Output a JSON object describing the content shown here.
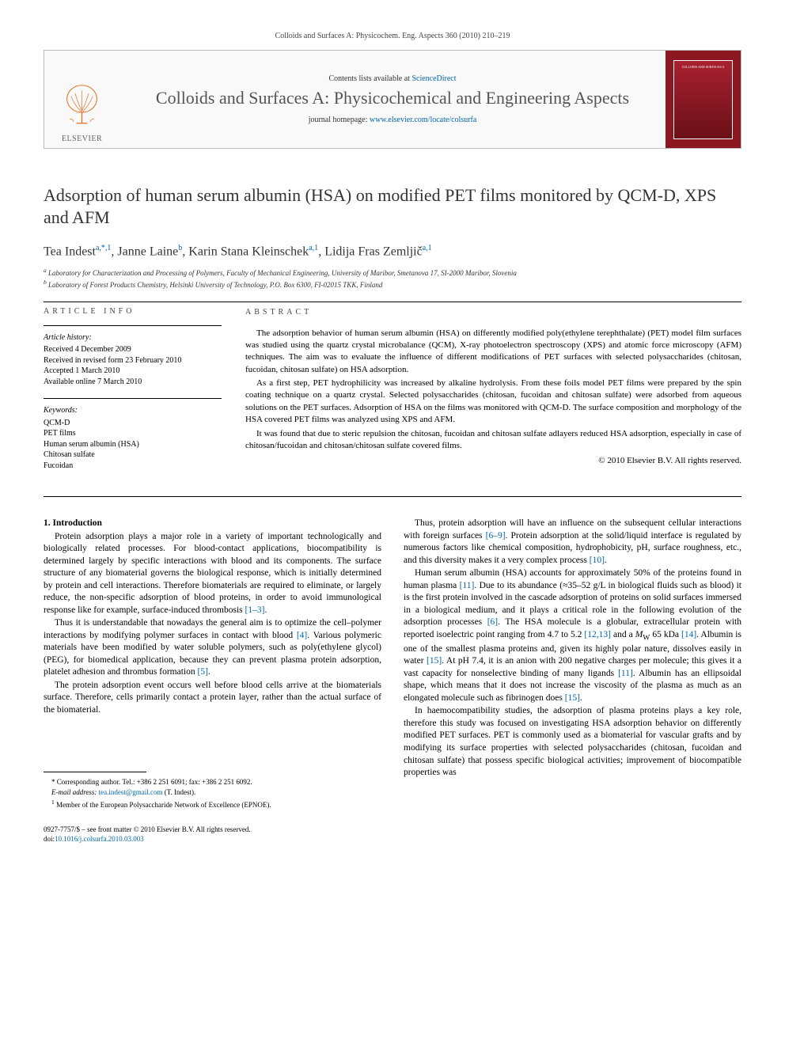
{
  "header": {
    "citation": "Colloids and Surfaces A: Physicochem. Eng. Aspects 360 (2010) 210–219"
  },
  "banner": {
    "contents_prefix": "Contents lists available at ",
    "contents_link": "ScienceDirect",
    "journal_name": "Colloids and Surfaces A: Physicochemical and Engineering Aspects",
    "homepage_prefix": "journal homepage: ",
    "homepage_url": "www.elsevier.com/locate/colsurfa",
    "publisher_label": "ELSEVIER",
    "cover_thumb_text": "COLLOIDS AND SURFACES A"
  },
  "article": {
    "title": "Adsorption of human serum albumin (HSA) on modified PET films monitored by QCM-D, XPS and AFM",
    "authors_html": "Tea Indest<sup>a,*,1</sup>, Janne Laine<sup>b</sup>, Karin Stana Kleinschek<sup>a,1</sup>, Lidija Fras Zemljič<sup>a,1</sup>",
    "affiliations": [
      "a Laboratory for Characterization and Processing of Polymers, Faculty of Mechanical Engineering, University of Maribor, Smetanova 17, SI-2000 Maribor, Slovenia",
      "b Laboratory of Forest Products Chemistry, Helsinki University of Technology, P.O. Box 6300, FI-02015 TKK, Finland"
    ]
  },
  "article_info": {
    "heading": "ARTICLE INFO",
    "history_title": "Article history:",
    "history": [
      "Received 4 December 2009",
      "Received in revised form 23 February 2010",
      "Accepted 1 March 2010",
      "Available online 7 March 2010"
    ],
    "keywords_title": "Keywords:",
    "keywords": [
      "QCM-D",
      "PET films",
      "Human serum albumin (HSA)",
      "Chitosan sulfate",
      "Fucoidan"
    ]
  },
  "abstract": {
    "heading": "ABSTRACT",
    "paragraphs": [
      "The adsorption behavior of human serum albumin (HSA) on differently modified poly(ethylene terephthalate) (PET) model film surfaces was studied using the quartz crystal microbalance (QCM), X-ray photoelectron spectroscopy (XPS) and atomic force microscopy (AFM) techniques. The aim was to evaluate the influence of different modifications of PET surfaces with selected polysaccharides (chitosan, fucoidan, chitosan sulfate) on HSA adsorption.",
      "As a first step, PET hydrophilicity was increased by alkaline hydrolysis. From these foils model PET films were prepared by the spin coating technique on a quartz crystal. Selected polysaccharides (chitosan, fucoidan and chitosan sulfate) were adsorbed from aqueous solutions on the PET surfaces. Adsorption of HSA on the films was monitored with QCM-D. The surface composition and morphology of the HSA covered PET films was analyzed using XPS and AFM.",
      "It was found that due to steric repulsion the chitosan, fucoidan and chitosan sulfate adlayers reduced HSA adsorption, especially in case of chitosan/fucoidan and chitosan/chitosan sulfate covered films."
    ],
    "copyright": "© 2010 Elsevier B.V. All rights reserved."
  },
  "body": {
    "section_heading": "1. Introduction",
    "left_paragraphs": [
      "Protein adsorption plays a major role in a variety of important technologically and biologically related processes. For blood-contact applications, biocompatibility is determined largely by specific interactions with blood and its components. The surface structure of any biomaterial governs the biological response, which is initially determined by protein and cell interactions. Therefore biomaterials are required to eliminate, or largely reduce, the non-specific adsorption of blood proteins, in order to avoid immunological response like for example, surface-induced thrombosis [1–3].",
      "Thus it is understandable that nowadays the general aim is to optimize the cell–polymer interactions by modifying polymer surfaces in contact with blood [4]. Various polymeric materials have been modified by water soluble polymers, such as poly(ethylene glycol) (PEG), for biomedical application, because they can prevent plasma protein adsorption, platelet adhesion and thrombus formation [5].",
      "The protein adsorption event occurs well before blood cells arrive at the biomaterials surface. Therefore, cells primarily contact a protein layer, rather than the actual surface of the biomaterial."
    ],
    "right_paragraphs": [
      "Thus, protein adsorption will have an influence on the subsequent cellular interactions with foreign surfaces [6–9]. Protein adsorption at the solid/liquid interface is regulated by numerous factors like chemical composition, hydrophobicity, pH, surface roughness, etc., and this diversity makes it a very complex process [10].",
      "Human serum albumin (HSA) accounts for approximately 50% of the proteins found in human plasma [11]. Due to its abundance (≈35–52 g/L in biological fluids such as blood) it is the first protein involved in the cascade adsorption of proteins on solid surfaces immersed in a biological medium, and it plays a critical role in the following evolution of the adsorption processes [6]. The HSA molecule is a globular, extracellular protein with reported isoelectric point ranging from 4.7 to 5.2 [12,13] and a Mw 65 kDa [14]. Albumin is one of the smallest plasma proteins and, given its highly polar nature, dissolves easily in water [15]. At pH 7.4, it is an anion with 200 negative charges per molecule; this gives it a vast capacity for nonselective binding of many ligands [11]. Albumin has an ellipsoidal shape, which means that it does not increase the viscosity of the plasma as much as an elongated molecule such as fibrinogen does [15].",
      "In haemocompatibility studies, the adsorption of plasma proteins plays a key role, therefore this study was focused on investigating HSA adsorption behavior on differently modified PET surfaces. PET is commonly used as a biomaterial for vascular grafts and by modifying its surface properties with selected polysaccharides (chitosan, fucoidan and chitosan sulfate) that possess specific biological activities; improvement of biocompatible properties was"
    ]
  },
  "footnotes": {
    "corresponding": "* Corresponding author. Tel.: +386 2 251 6091; fax: +386 2 251 6092.",
    "email_label": "E-mail address:",
    "email": "tea.indest@gmail.com",
    "email_suffix": "(T. Indest).",
    "note1": "1  Member of the European Polysaccharide Network of Excellence (EPNOE)."
  },
  "footer": {
    "issn": "0927-7757/$ – see front matter © 2010 Elsevier B.V. All rights reserved.",
    "doi_label": "doi:",
    "doi": "10.1016/j.colsurfa.2010.03.003"
  },
  "refs": {
    "r1_3": "[1–3]",
    "r4": "[4]",
    "r5": "[5]",
    "r6_9": "[6–9]",
    "r10": "[10]",
    "r11": "[11]",
    "r6": "[6]",
    "r12_13": "[12,13]",
    "r14": "[14]",
    "r15": "[15]"
  },
  "colors": {
    "link": "#0066aa",
    "banner_cover": "#8b1820",
    "text": "#000000"
  }
}
